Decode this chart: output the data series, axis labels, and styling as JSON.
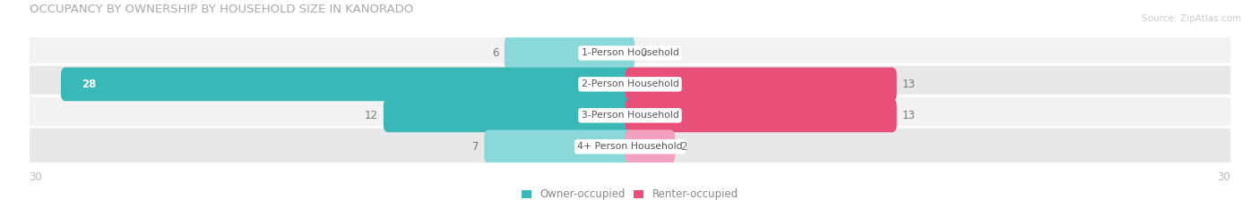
{
  "title": "OCCUPANCY BY OWNERSHIP BY HOUSEHOLD SIZE IN KANORADO",
  "source": "Source: ZipAtlas.com",
  "categories": [
    "1-Person Household",
    "2-Person Household",
    "3-Person Household",
    "4+ Person Household"
  ],
  "owner_values": [
    6,
    28,
    12,
    7
  ],
  "renter_values": [
    0,
    13,
    13,
    2
  ],
  "owner_color_dark": "#3ab8b8",
  "owner_color_light": "#8ad8d8",
  "renter_color_dark": "#e8507a",
  "renter_color_light": "#f4a0c0",
  "row_bg_colors": [
    "#f2f2f2",
    "#e8e8e8",
    "#f2f2f2",
    "#e8e8e8"
  ],
  "axis_max": 30,
  "legend_owner": "Owner-occupied",
  "legend_renter": "Renter-occupied",
  "axis_label_left": "30",
  "axis_label_right": "30"
}
